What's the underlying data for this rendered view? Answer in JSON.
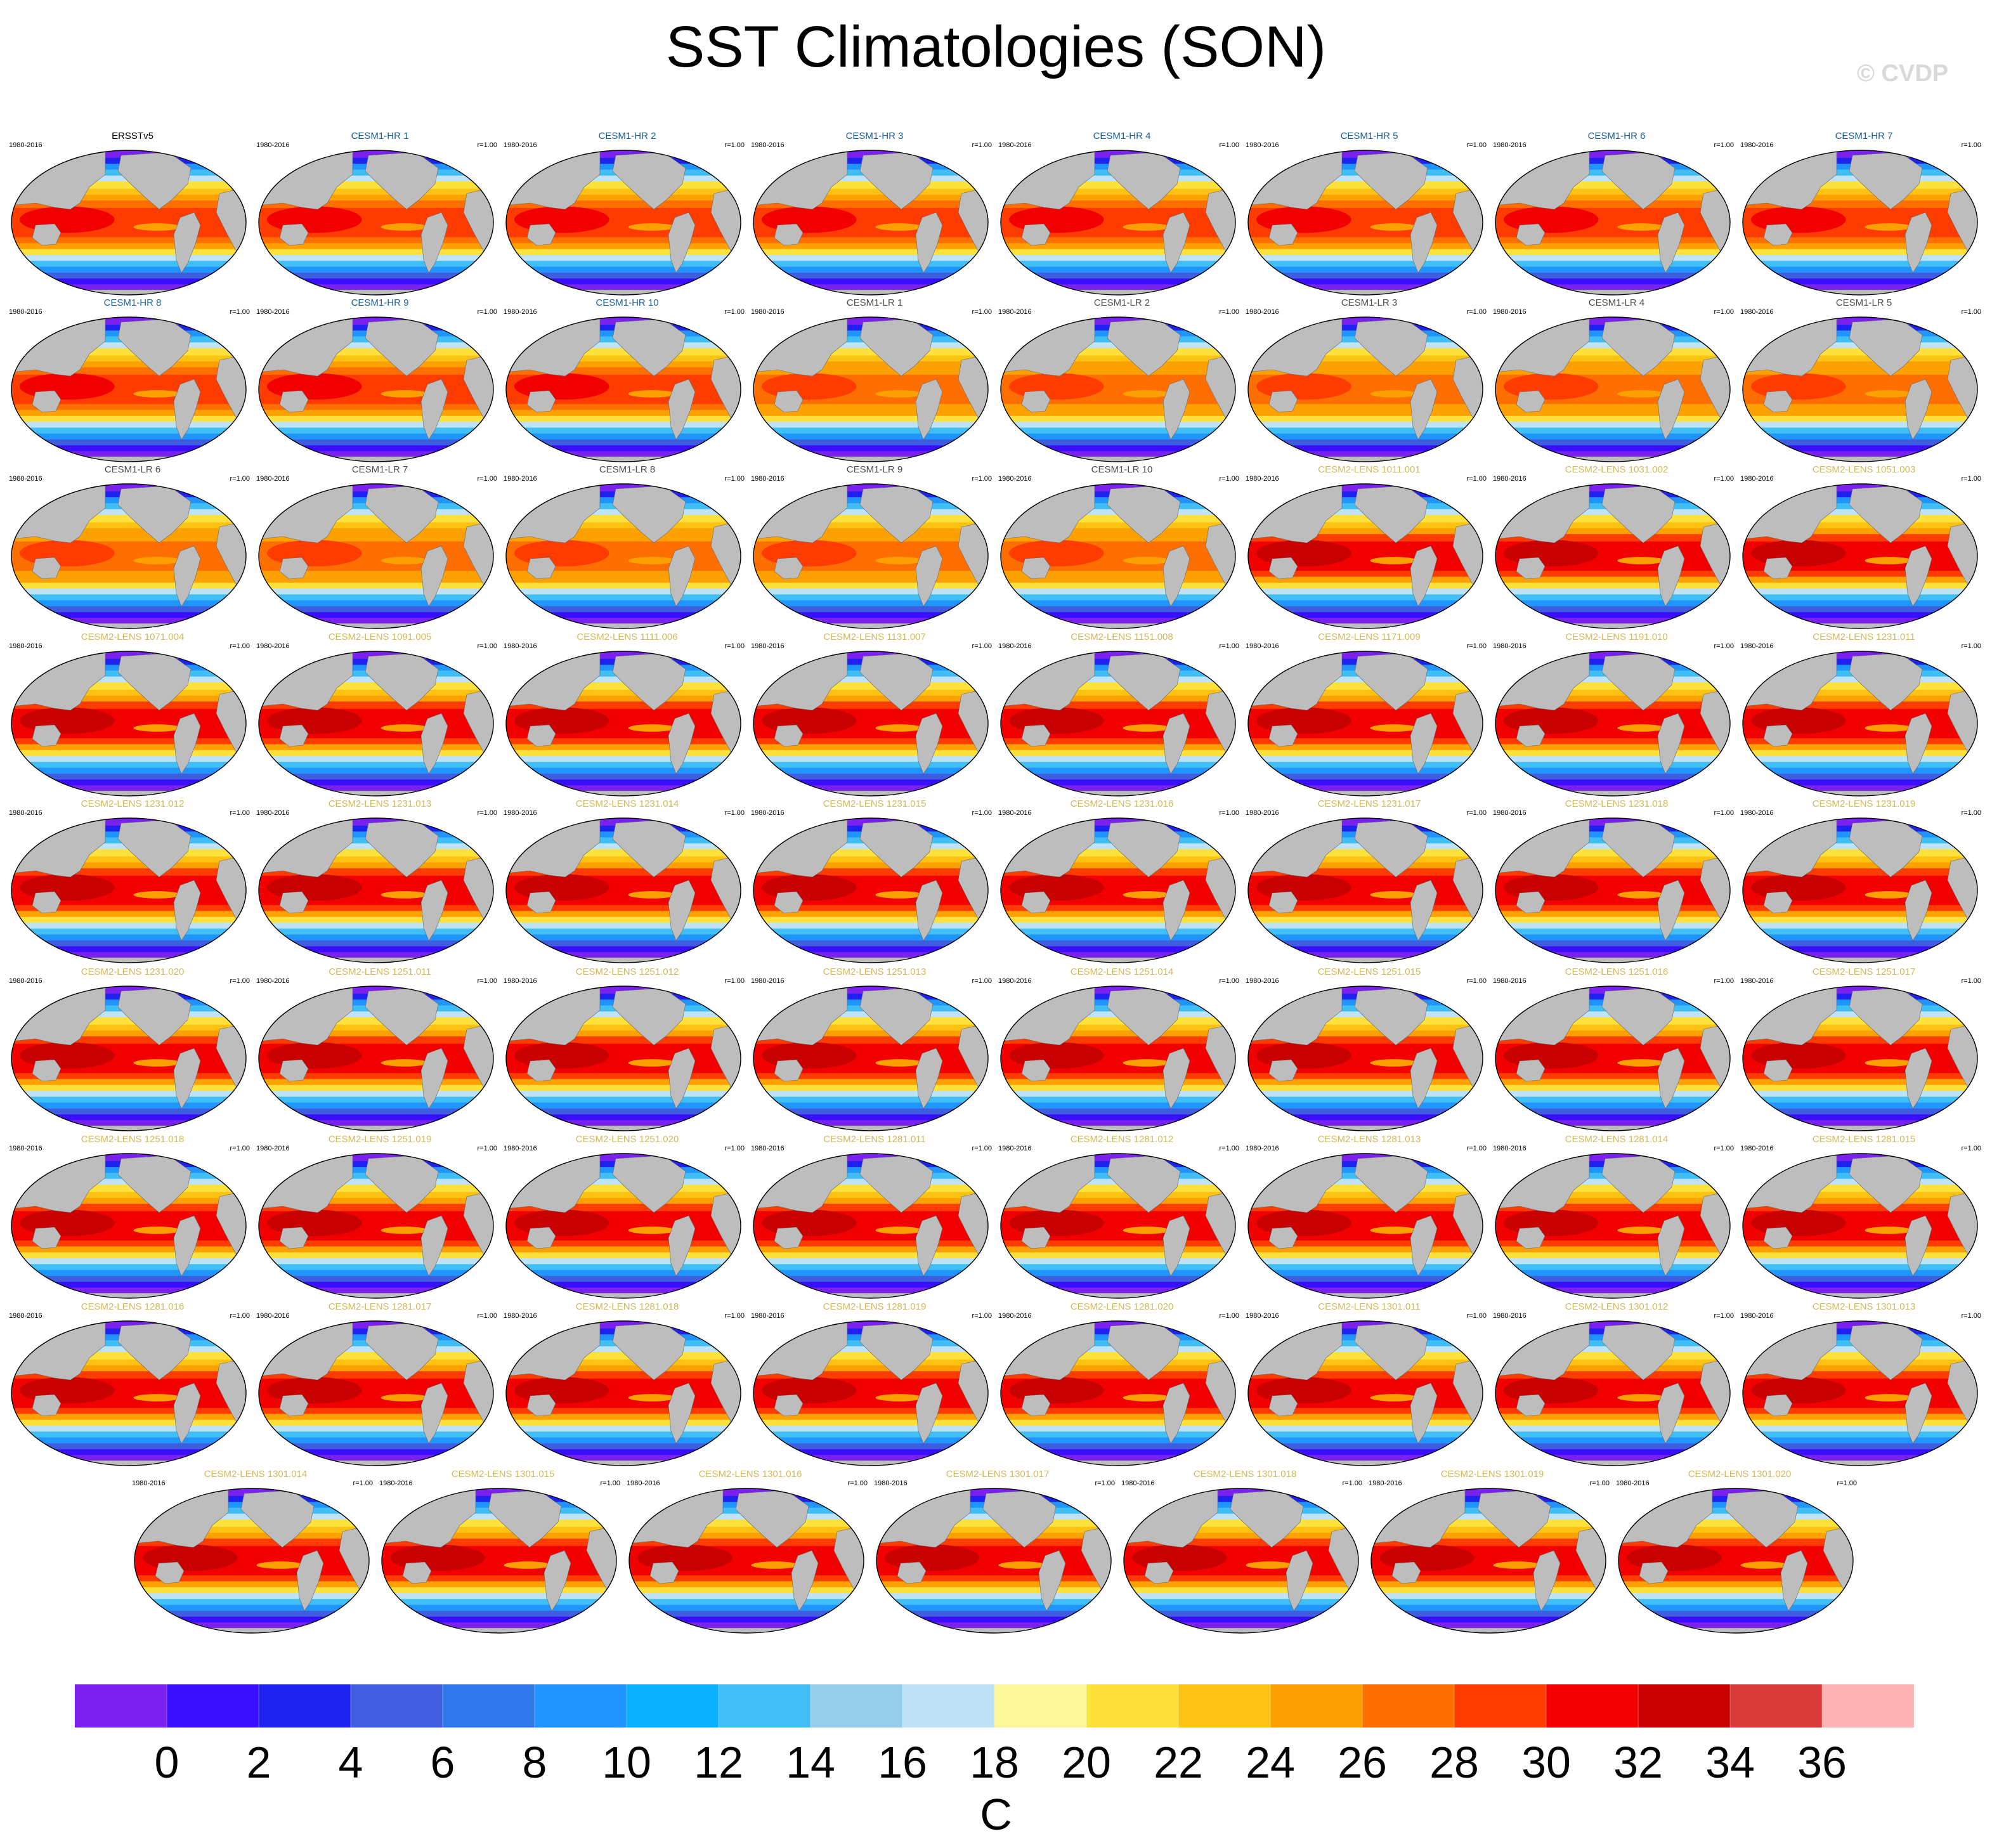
{
  "title": "SST Climatologies (SON)",
  "watermark": "© CVDP",
  "chart_data": {
    "type": "heatmap",
    "title": "SST Climatologies (SON)",
    "variable": "SST",
    "season": "SON",
    "units": "C",
    "period": "1980-2016",
    "projection": "global map",
    "colorbar": {
      "levels": [
        0,
        2,
        4,
        6,
        8,
        10,
        12,
        14,
        16,
        18,
        20,
        22,
        24,
        26,
        28,
        30,
        32,
        34,
        36
      ],
      "tick_labels": [
        "0",
        "2",
        "4",
        "6",
        "8",
        "10",
        "12",
        "14",
        "16",
        "18",
        "20",
        "22",
        "24",
        "26",
        "28",
        "30",
        "32",
        "34",
        "36"
      ],
      "colors": [
        "#7b21ef",
        "#3a0fff",
        "#1e22ee",
        "#3f5ddf",
        "#2f78ea",
        "#2095ff",
        "#0aafff",
        "#3fbff5",
        "#93cdea",
        "#bee3f6",
        "#fbf79a",
        "#fde23e",
        "#fdc313",
        "#fda100",
        "#ff6f00",
        "#ff3c00",
        "#f20000",
        "#c80000",
        "#d83a3a",
        "#fdb3b3"
      ],
      "label": "C"
    },
    "panels": [
      {
        "name": "ERSSTv5",
        "group": "obs",
        "period": "1980-2016",
        "r": ""
      },
      {
        "name": "CESM1-HR 1",
        "group": "CESM1-HR",
        "period": "1980-2016",
        "r": "r=1.00"
      },
      {
        "name": "CESM1-HR 2",
        "group": "CESM1-HR",
        "period": "1980-2016",
        "r": "r=1.00"
      },
      {
        "name": "CESM1-HR 3",
        "group": "CESM1-HR",
        "period": "1980-2016",
        "r": "r=1.00"
      },
      {
        "name": "CESM1-HR 4",
        "group": "CESM1-HR",
        "period": "1980-2016",
        "r": "r=1.00"
      },
      {
        "name": "CESM1-HR 5",
        "group": "CESM1-HR",
        "period": "1980-2016",
        "r": "r=1.00"
      },
      {
        "name": "CESM1-HR 6",
        "group": "CESM1-HR",
        "period": "1980-2016",
        "r": "r=1.00"
      },
      {
        "name": "CESM1-HR 7",
        "group": "CESM1-HR",
        "period": "1980-2016",
        "r": "r=1.00"
      },
      {
        "name": "CESM1-HR 8",
        "group": "CESM1-HR",
        "period": "1980-2016",
        "r": "r=1.00"
      },
      {
        "name": "CESM1-HR 9",
        "group": "CESM1-HR",
        "period": "1980-2016",
        "r": "r=1.00"
      },
      {
        "name": "CESM1-HR 10",
        "group": "CESM1-HR",
        "period": "1980-2016",
        "r": "r=1.00"
      },
      {
        "name": "CESM1-LR 1",
        "group": "CESM1-LR",
        "period": "1980-2016",
        "r": "r=1.00"
      },
      {
        "name": "CESM1-LR 2",
        "group": "CESM1-LR",
        "period": "1980-2016",
        "r": "r=1.00"
      },
      {
        "name": "CESM1-LR 3",
        "group": "CESM1-LR",
        "period": "1980-2016",
        "r": "r=1.00"
      },
      {
        "name": "CESM1-LR 4",
        "group": "CESM1-LR",
        "period": "1980-2016",
        "r": "r=1.00"
      },
      {
        "name": "CESM1-LR 5",
        "group": "CESM1-LR",
        "period": "1980-2016",
        "r": "r=1.00"
      },
      {
        "name": "CESM1-LR 6",
        "group": "CESM1-LR",
        "period": "1980-2016",
        "r": "r=1.00"
      },
      {
        "name": "CESM1-LR 7",
        "group": "CESM1-LR",
        "period": "1980-2016",
        "r": "r=1.00"
      },
      {
        "name": "CESM1-LR 8",
        "group": "CESM1-LR",
        "period": "1980-2016",
        "r": "r=1.00"
      },
      {
        "name": "CESM1-LR 9",
        "group": "CESM1-LR",
        "period": "1980-2016",
        "r": "r=1.00"
      },
      {
        "name": "CESM1-LR 10",
        "group": "CESM1-LR",
        "period": "1980-2016",
        "r": "r=1.00"
      },
      {
        "name": "CESM2-LENS 1011.001",
        "group": "CESM2-LENS",
        "period": "1980-2016",
        "r": "r=1.00"
      },
      {
        "name": "CESM2-LENS 1031.002",
        "group": "CESM2-LENS",
        "period": "1980-2016",
        "r": "r=1.00"
      },
      {
        "name": "CESM2-LENS 1051.003",
        "group": "CESM2-LENS",
        "period": "1980-2016",
        "r": "r=1.00"
      },
      {
        "name": "CESM2-LENS 1071.004",
        "group": "CESM2-LENS",
        "period": "1980-2016",
        "r": "r=1.00"
      },
      {
        "name": "CESM2-LENS 1091.005",
        "group": "CESM2-LENS",
        "period": "1980-2016",
        "r": "r=1.00"
      },
      {
        "name": "CESM2-LENS 1111.006",
        "group": "CESM2-LENS",
        "period": "1980-2016",
        "r": "r=1.00"
      },
      {
        "name": "CESM2-LENS 1131.007",
        "group": "CESM2-LENS",
        "period": "1980-2016",
        "r": "r=1.00"
      },
      {
        "name": "CESM2-LENS 1151.008",
        "group": "CESM2-LENS",
        "period": "1980-2016",
        "r": "r=1.00"
      },
      {
        "name": "CESM2-LENS 1171.009",
        "group": "CESM2-LENS",
        "period": "1980-2016",
        "r": "r=1.00"
      },
      {
        "name": "CESM2-LENS 1191.010",
        "group": "CESM2-LENS",
        "period": "1980-2016",
        "r": "r=1.00"
      },
      {
        "name": "CESM2-LENS 1231.011",
        "group": "CESM2-LENS",
        "period": "1980-2016",
        "r": "r=1.00"
      },
      {
        "name": "CESM2-LENS 1231.012",
        "group": "CESM2-LENS",
        "period": "1980-2016",
        "r": "r=1.00"
      },
      {
        "name": "CESM2-LENS 1231.013",
        "group": "CESM2-LENS",
        "period": "1980-2016",
        "r": "r=1.00"
      },
      {
        "name": "CESM2-LENS 1231.014",
        "group": "CESM2-LENS",
        "period": "1980-2016",
        "r": "r=1.00"
      },
      {
        "name": "CESM2-LENS 1231.015",
        "group": "CESM2-LENS",
        "period": "1980-2016",
        "r": "r=1.00"
      },
      {
        "name": "CESM2-LENS 1231.016",
        "group": "CESM2-LENS",
        "period": "1980-2016",
        "r": "r=1.00"
      },
      {
        "name": "CESM2-LENS 1231.017",
        "group": "CESM2-LENS",
        "period": "1980-2016",
        "r": "r=1.00"
      },
      {
        "name": "CESM2-LENS 1231.018",
        "group": "CESM2-LENS",
        "period": "1980-2016",
        "r": "r=1.00"
      },
      {
        "name": "CESM2-LENS 1231.019",
        "group": "CESM2-LENS",
        "period": "1980-2016",
        "r": "r=1.00"
      },
      {
        "name": "CESM2-LENS 1231.020",
        "group": "CESM2-LENS",
        "period": "1980-2016",
        "r": "r=1.00"
      },
      {
        "name": "CESM2-LENS 1251.011",
        "group": "CESM2-LENS",
        "period": "1980-2016",
        "r": "r=1.00"
      },
      {
        "name": "CESM2-LENS 1251.012",
        "group": "CESM2-LENS",
        "period": "1980-2016",
        "r": "r=1.00"
      },
      {
        "name": "CESM2-LENS 1251.013",
        "group": "CESM2-LENS",
        "period": "1980-2016",
        "r": "r=1.00"
      },
      {
        "name": "CESM2-LENS 1251.014",
        "group": "CESM2-LENS",
        "period": "1980-2016",
        "r": "r=1.00"
      },
      {
        "name": "CESM2-LENS 1251.015",
        "group": "CESM2-LENS",
        "period": "1980-2016",
        "r": "r=1.00"
      },
      {
        "name": "CESM2-LENS 1251.016",
        "group": "CESM2-LENS",
        "period": "1980-2016",
        "r": "r=1.00"
      },
      {
        "name": "CESM2-LENS 1251.017",
        "group": "CESM2-LENS",
        "period": "1980-2016",
        "r": "r=1.00"
      },
      {
        "name": "CESM2-LENS 1251.018",
        "group": "CESM2-LENS",
        "period": "1980-2016",
        "r": "r=1.00"
      },
      {
        "name": "CESM2-LENS 1251.019",
        "group": "CESM2-LENS",
        "period": "1980-2016",
        "r": "r=1.00"
      },
      {
        "name": "CESM2-LENS 1251.020",
        "group": "CESM2-LENS",
        "period": "1980-2016",
        "r": "r=1.00"
      },
      {
        "name": "CESM2-LENS 1281.011",
        "group": "CESM2-LENS",
        "period": "1980-2016",
        "r": "r=1.00"
      },
      {
        "name": "CESM2-LENS 1281.012",
        "group": "CESM2-LENS",
        "period": "1980-2016",
        "r": "r=1.00"
      },
      {
        "name": "CESM2-LENS 1281.013",
        "group": "CESM2-LENS",
        "period": "1980-2016",
        "r": "r=1.00"
      },
      {
        "name": "CESM2-LENS 1281.014",
        "group": "CESM2-LENS",
        "period": "1980-2016",
        "r": "r=1.00"
      },
      {
        "name": "CESM2-LENS 1281.015",
        "group": "CESM2-LENS",
        "period": "1980-2016",
        "r": "r=1.00"
      },
      {
        "name": "CESM2-LENS 1281.016",
        "group": "CESM2-LENS",
        "period": "1980-2016",
        "r": "r=1.00"
      },
      {
        "name": "CESM2-LENS 1281.017",
        "group": "CESM2-LENS",
        "period": "1980-2016",
        "r": "r=1.00"
      },
      {
        "name": "CESM2-LENS 1281.018",
        "group": "CESM2-LENS",
        "period": "1980-2016",
        "r": "r=1.00"
      },
      {
        "name": "CESM2-LENS 1281.019",
        "group": "CESM2-LENS",
        "period": "1980-2016",
        "r": "r=1.00"
      },
      {
        "name": "CESM2-LENS 1281.020",
        "group": "CESM2-LENS",
        "period": "1980-2016",
        "r": "r=1.00"
      },
      {
        "name": "CESM2-LENS 1301.011",
        "group": "CESM2-LENS",
        "period": "1980-2016",
        "r": "r=1.00"
      },
      {
        "name": "CESM2-LENS 1301.012",
        "group": "CESM2-LENS",
        "period": "1980-2016",
        "r": "r=1.00"
      },
      {
        "name": "CESM2-LENS 1301.013",
        "group": "CESM2-LENS",
        "period": "1980-2016",
        "r": "r=1.00"
      },
      {
        "name": "CESM2-LENS 1301.014",
        "group": "CESM2-LENS",
        "period": "1980-2016",
        "r": "r=1.00"
      },
      {
        "name": "CESM2-LENS 1301.015",
        "group": "CESM2-LENS",
        "period": "1980-2016",
        "r": "r=1.00"
      },
      {
        "name": "CESM2-LENS 1301.016",
        "group": "CESM2-LENS",
        "period": "1980-2016",
        "r": "r=1.00"
      },
      {
        "name": "CESM2-LENS 1301.017",
        "group": "CESM2-LENS",
        "period": "1980-2016",
        "r": "r=1.00"
      },
      {
        "name": "CESM2-LENS 1301.018",
        "group": "CESM2-LENS",
        "period": "1980-2016",
        "r": "r=1.00"
      },
      {
        "name": "CESM2-LENS 1301.019",
        "group": "CESM2-LENS",
        "period": "1980-2016",
        "r": "r=1.00"
      },
      {
        "name": "CESM2-LENS 1301.020",
        "group": "CESM2-LENS",
        "period": "1980-2016",
        "r": "r=1.00"
      }
    ]
  },
  "group_colors": {
    "obs": "#000000",
    "CESM1-HR": "#1a5f9a",
    "CESM1-LR": "#4d4d4d",
    "CESM2-LENS": "#d4b85a"
  },
  "land_color": "#bdbdbd"
}
